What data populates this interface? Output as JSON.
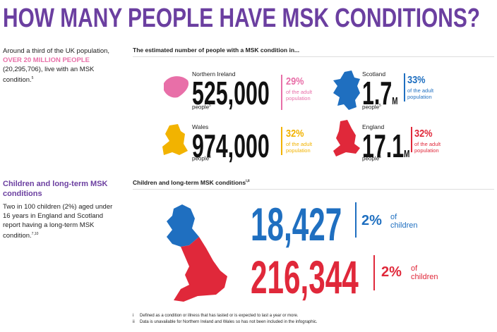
{
  "title": "HOW MANY PEOPLE HAVE MSK CONDITIONS?",
  "title_color": "#6b3fa0",
  "intro": {
    "before": "Around a third of the UK population,",
    "highlight": "OVER 20 MILLION PEOPLE",
    "after": "(20,295,706), live with an MSK condition.",
    "sup": "5"
  },
  "nations": {
    "heading": "The estimated number of people with a MSK condition in...",
    "items": [
      {
        "name": "Northern Ireland",
        "number": "525,000",
        "people": "people",
        "sup": "5",
        "percent": "29%",
        "note": "of the adult population",
        "color": "#e86fa8"
      },
      {
        "name": "Scotland",
        "number": "1.7",
        "unit": "M",
        "people": "people",
        "sup": "5",
        "percent": "33%",
        "note": "of the adult population",
        "color": "#1f6fc0"
      },
      {
        "name": "Wales",
        "number": "974,000",
        "people": "people",
        "sup": "5",
        "percent": "32%",
        "note": "of the adult population",
        "color": "#f2b300"
      },
      {
        "name": "England",
        "number": "17.1",
        "unit": "M",
        "people": "people",
        "sup": "5",
        "percent": "32%",
        "note": "of the adult population",
        "color": "#e0283a"
      }
    ]
  },
  "children_side": {
    "heading": "Children and long-term MSK conditions",
    "text": "Two in 100 children (2%) aged under 16 years in England and Scotland report having a long-term MSK condition.",
    "sup": "7,10"
  },
  "children": {
    "heading": "Children and long-term MSK conditions",
    "sup": "i,ii",
    "rows": [
      {
        "number": "18,427",
        "percent": "2%",
        "note": "of children",
        "color": "#1f6fc0"
      },
      {
        "number": "216,344",
        "percent": "2%",
        "note": "of children",
        "color": "#e0283a"
      }
    ]
  },
  "footnotes": [
    {
      "marker": "i",
      "text": "Defined as a condition or illness that has lasted or is expected to last a year or more."
    },
    {
      "marker": "ii",
      "text": "Data is unavailable for Northern Ireland and Wales so has not been included in the infographic."
    }
  ]
}
